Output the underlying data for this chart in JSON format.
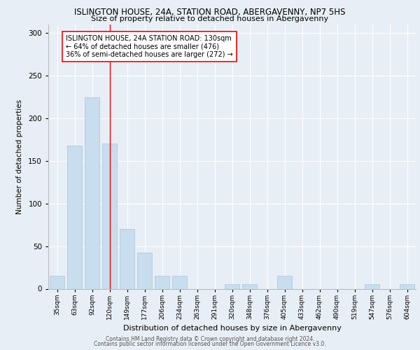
{
  "title1": "ISLINGTON HOUSE, 24A, STATION ROAD, ABERGAVENNY, NP7 5HS",
  "title2": "Size of property relative to detached houses in Abergavenny",
  "xlabel": "Distribution of detached houses by size in Abergavenny",
  "ylabel": "Number of detached properties",
  "categories": [
    "35sqm",
    "63sqm",
    "92sqm",
    "120sqm",
    "149sqm",
    "177sqm",
    "206sqm",
    "234sqm",
    "263sqm",
    "291sqm",
    "320sqm",
    "348sqm",
    "376sqm",
    "405sqm",
    "433sqm",
    "462sqm",
    "490sqm",
    "519sqm",
    "547sqm",
    "576sqm",
    "604sqm"
  ],
  "values": [
    15,
    168,
    225,
    170,
    70,
    42,
    15,
    15,
    0,
    0,
    5,
    5,
    0,
    15,
    0,
    0,
    0,
    0,
    5,
    0,
    5
  ],
  "bar_color": "#c8dded",
  "bar_edgecolor": "#aac5de",
  "vline_x": 3.0,
  "vline_color": "red",
  "annotation_text": "ISLINGTON HOUSE, 24A STATION ROAD: 130sqm\n← 64% of detached houses are smaller (476)\n36% of semi-detached houses are larger (272) →",
  "annotation_box_color": "white",
  "annotation_box_edgecolor": "red",
  "footer1": "Contains HM Land Registry data © Crown copyright and database right 2024.",
  "footer2": "Contains public sector information licensed under the Open Government Licence v3.0.",
  "bg_color": "#e8eef5",
  "plot_bg_color": "#e8eef5",
  "ylim": [
    0,
    310
  ],
  "yticks": [
    0,
    50,
    100,
    150,
    200,
    250,
    300
  ]
}
